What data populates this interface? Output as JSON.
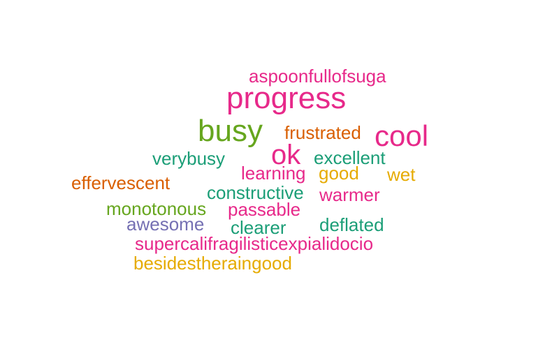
{
  "words": [
    {
      "text": "aspoonfullofsuga",
      "color": "#e7298a"
    },
    {
      "text": "progress",
      "color": "#e7298a"
    },
    {
      "text": "busy",
      "color": "#66a61e"
    },
    {
      "text": "frustrated",
      "color": "#d95f02"
    },
    {
      "text": "cool",
      "color": "#e7298a"
    },
    {
      "text": "ok",
      "color": "#e7298a"
    },
    {
      "text": "verybusy",
      "color": "#1b9e77"
    },
    {
      "text": "excellent",
      "color": "#1b9e77"
    },
    {
      "text": "learning",
      "color": "#e7298a"
    },
    {
      "text": "good",
      "color": "#e6ab02"
    },
    {
      "text": "wet",
      "color": "#e6ab02"
    },
    {
      "text": "effervescent",
      "color": "#d95f02"
    },
    {
      "text": "constructive",
      "color": "#1b9e77"
    },
    {
      "text": "warmer",
      "color": "#e7298a"
    },
    {
      "text": "monotonous",
      "color": "#66a61e"
    },
    {
      "text": "passable",
      "color": "#e7298a"
    },
    {
      "text": "awesome",
      "color": "#7570b3"
    },
    {
      "text": "clearer",
      "color": "#1b9e77"
    },
    {
      "text": "deflated",
      "color": "#1b9e77"
    },
    {
      "text": "supercalifragilisticexpialidocio",
      "color": "#e7298a"
    },
    {
      "text": "besidestheraingood",
      "color": "#e6ab02"
    }
  ]
}
